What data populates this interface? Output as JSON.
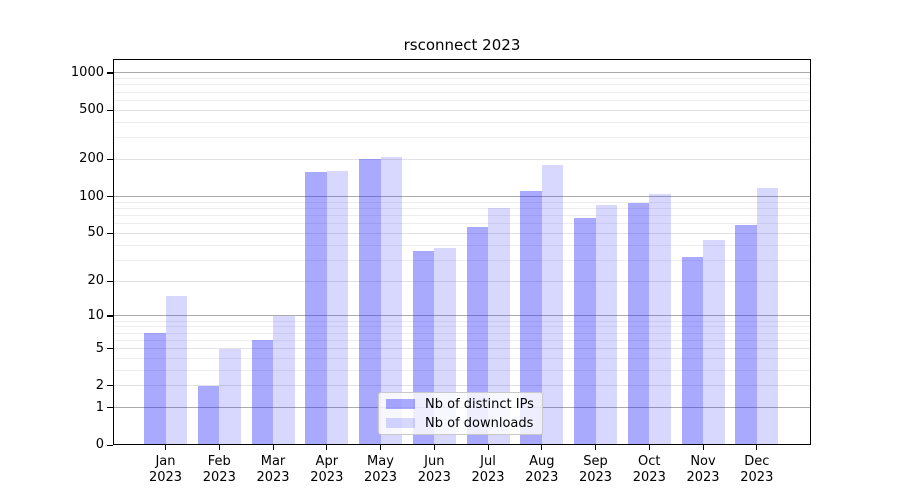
{
  "chart_data": {
    "type": "bar",
    "title": "rsconnect 2023",
    "categories": [
      "Jan",
      "Feb",
      "Mar",
      "Apr",
      "May",
      "Jun",
      "Jul",
      "Aug",
      "Sep",
      "Oct",
      "Nov",
      "Dec"
    ],
    "x_year_suffix": "2023",
    "series": [
      {
        "name": "Nb of distinct IPs",
        "fill": "rgba(40,40,250,0.40)",
        "values": [
          7,
          2,
          6,
          158,
          200,
          36,
          56,
          110,
          67,
          88,
          32,
          58
        ]
      },
      {
        "name": "Nb of downloads",
        "fill": "rgba(40,40,250,0.18)",
        "values": [
          15,
          5,
          10,
          160,
          210,
          38,
          80,
          180,
          85,
          104,
          44,
          118
        ]
      }
    ],
    "y_axis": {
      "scale": "log1p",
      "tick_values": [
        0,
        1,
        2,
        5,
        10,
        20,
        50,
        100,
        200,
        500,
        1000
      ],
      "tick_labels": [
        "0",
        "1",
        "2",
        "5",
        "10",
        "20",
        "50",
        "100",
        "200",
        "500",
        "1000"
      ],
      "ylim": [
        0,
        1300
      ]
    },
    "grid": {
      "on": true,
      "major_values": [
        1,
        10,
        100,
        1000
      ],
      "major_color": "#ababab",
      "mid_color": "#e2e2e6",
      "minor_color": "#ededf0"
    },
    "legend": {
      "position": "lower center"
    }
  }
}
